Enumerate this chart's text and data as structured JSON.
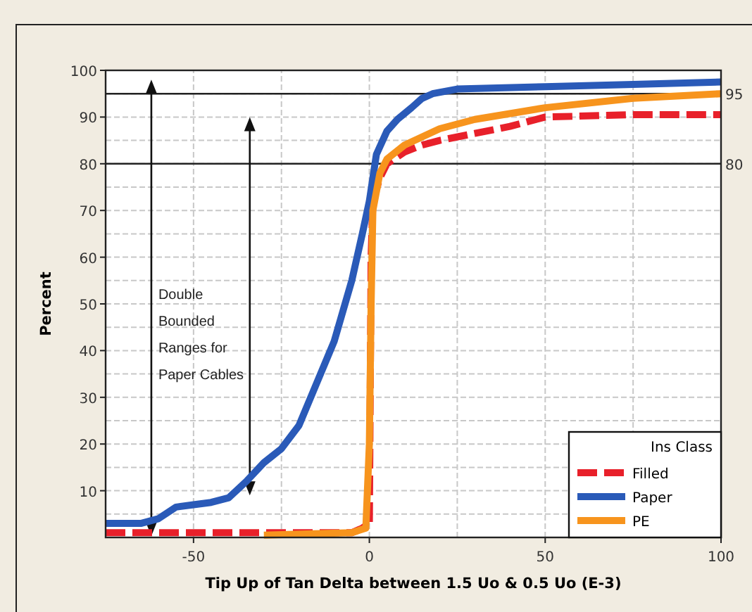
{
  "chart_data": {
    "type": "line",
    "xlabel": "Tip Up of Tan Delta between 1.5 Uo & 0.5 Uo (E-3)",
    "ylabel": "Percent",
    "legend_title": "Ins Class",
    "legend": "bottom right",
    "grid": true,
    "marker": "none",
    "xlim": [
      -75,
      100
    ],
    "xticks": [
      -50,
      0,
      50,
      100
    ],
    "ylim": [
      0,
      100
    ],
    "yticks": [
      10,
      20,
      30,
      40,
      50,
      60,
      70,
      80,
      90,
      100
    ],
    "ref_lines": [
      {
        "axis": "y",
        "value": 95,
        "label": "95",
        "color": "#222222",
        "line_style": "solid"
      },
      {
        "axis": "y",
        "value": 80,
        "label": "80",
        "color": "#222222",
        "line_style": "solid"
      }
    ],
    "annotations": [
      "Double Bounded Ranges for Paper Cables"
    ],
    "series": [
      {
        "name": "Filled",
        "color": "#e8202a",
        "line_style": "dashed",
        "x": [
          -75,
          -50,
          -25,
          -5,
          -2,
          0,
          0.5,
          1,
          3,
          5,
          10,
          15,
          20,
          30,
          40,
          50,
          75,
          100
        ],
        "values": [
          1,
          1,
          1,
          1,
          2,
          3,
          60,
          72,
          77,
          80,
          82.5,
          84,
          85,
          86.5,
          88,
          90,
          90.5,
          90.5
        ]
      },
      {
        "name": "Paper",
        "color": "#2a5ab8",
        "line_style": "solid",
        "x": [
          -75,
          -65,
          -60,
          -55,
          -50,
          -45,
          -40,
          -35,
          -30,
          -25,
          -20,
          -15,
          -10,
          -5,
          -2,
          0,
          2,
          5,
          8,
          12,
          15,
          18,
          25,
          50,
          75,
          100
        ],
        "values": [
          3,
          3,
          4,
          6.5,
          7,
          7.5,
          8.5,
          12,
          16,
          19,
          24,
          33,
          42,
          55,
          65,
          72,
          82,
          87,
          89.5,
          92,
          94,
          95,
          96,
          96.5,
          97,
          97.5
        ]
      },
      {
        "name": "PE",
        "color": "#f7941d",
        "line_style": "solid",
        "x": [
          -30,
          -5,
          -1,
          0,
          0.5,
          1,
          3,
          5,
          10,
          20,
          30,
          50,
          75,
          100
        ],
        "values": [
          0.5,
          1,
          2,
          20,
          50,
          70,
          78,
          81,
          84,
          87.5,
          89.5,
          92,
          94,
          95
        ]
      }
    ]
  }
}
